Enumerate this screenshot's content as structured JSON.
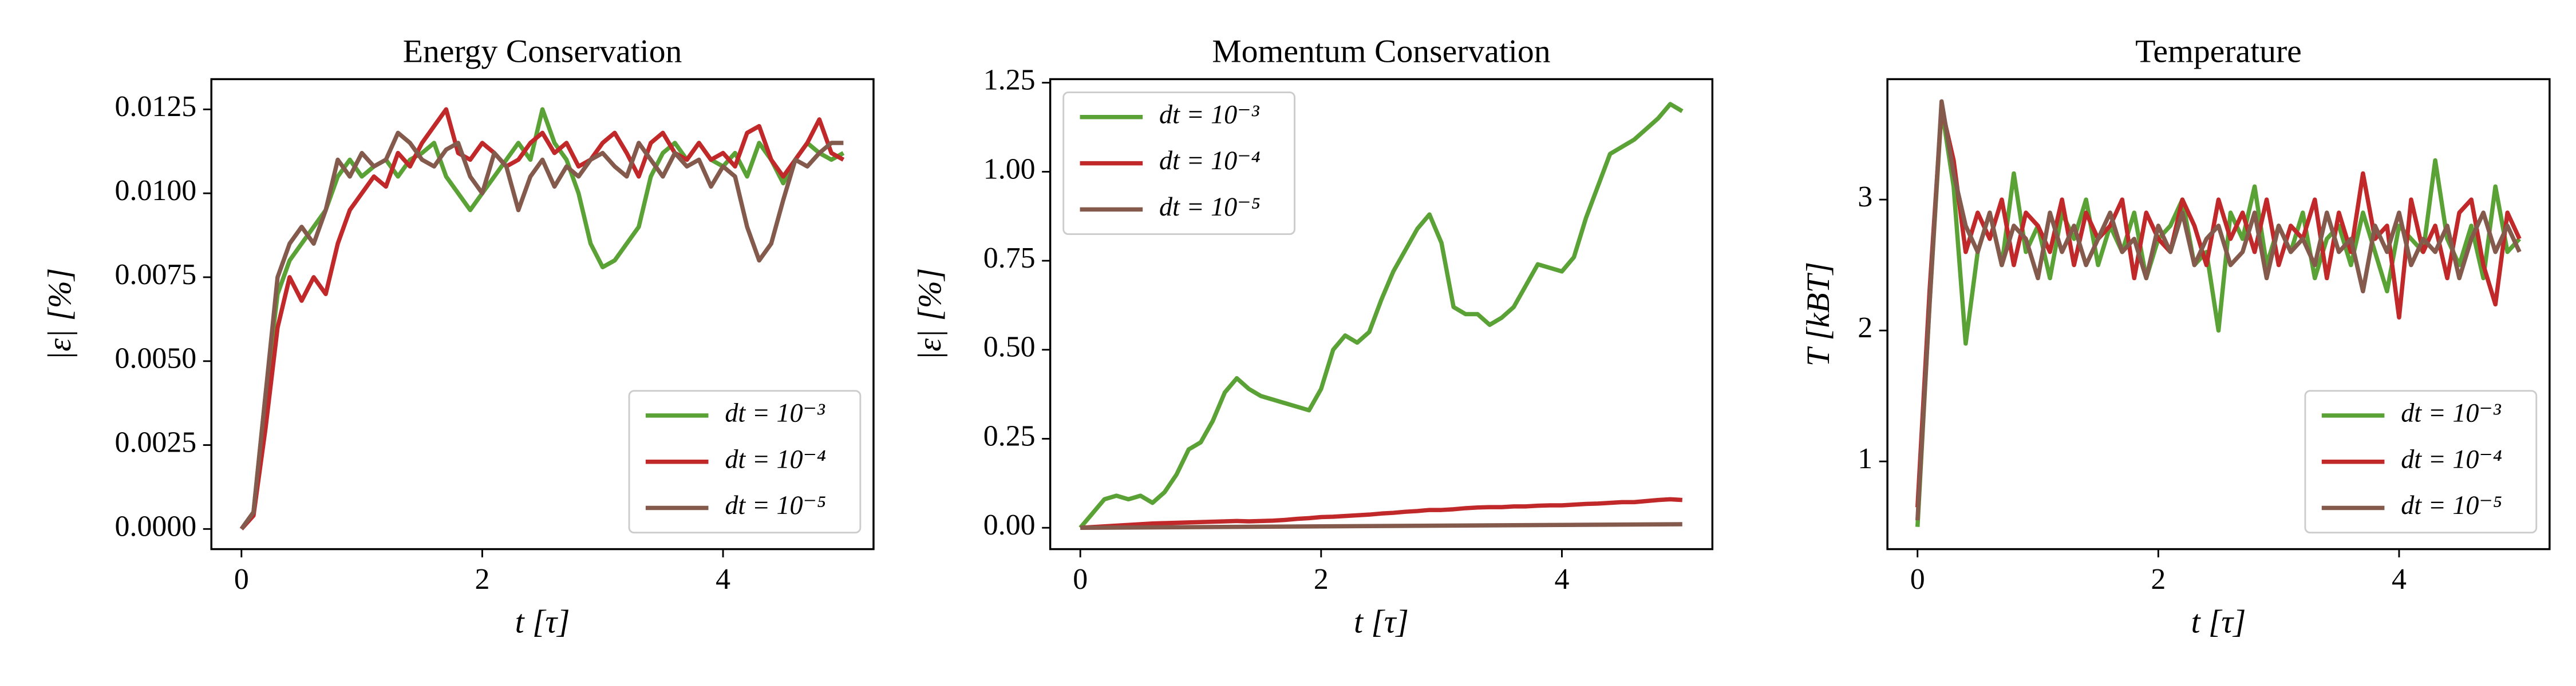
{
  "chart_data": [
    {
      "type": "line",
      "title": "Energy Conservation",
      "xlabel": "t [τ]",
      "ylabel": "|ε| [%]",
      "x": [
        0,
        0.1,
        0.2,
        0.3,
        0.4,
        0.5,
        0.6,
        0.7,
        0.8,
        0.9,
        1.0,
        1.1,
        1.2,
        1.3,
        1.4,
        1.5,
        1.6,
        1.7,
        1.8,
        1.9,
        2.0,
        2.1,
        2.2,
        2.3,
        2.4,
        2.5,
        2.6,
        2.7,
        2.8,
        2.9,
        3.0,
        3.1,
        3.2,
        3.3,
        3.4,
        3.5,
        3.6,
        3.7,
        3.8,
        3.9,
        4.0,
        4.1,
        4.2,
        4.3,
        4.4,
        4.5,
        4.6,
        4.7,
        4.8,
        4.9,
        5.0
      ],
      "series": [
        {
          "name": "dt = 10⁻³",
          "color": "#5ba236",
          "values": [
            0,
            0.0005,
            0.004,
            0.007,
            0.008,
            0.0085,
            0.009,
            0.0095,
            0.0105,
            0.011,
            0.0105,
            0.0108,
            0.011,
            0.0105,
            0.011,
            0.0112,
            0.0115,
            0.0105,
            0.01,
            0.0095,
            0.01,
            0.0105,
            0.011,
            0.0115,
            0.011,
            0.0125,
            0.0115,
            0.011,
            0.01,
            0.0085,
            0.0078,
            0.008,
            0.0085,
            0.009,
            0.0105,
            0.0112,
            0.0115,
            0.011,
            0.0115,
            0.011,
            0.0108,
            0.0112,
            0.0105,
            0.0115,
            0.011,
            0.0103,
            0.011,
            0.0115,
            0.0112,
            0.011,
            0.0112
          ]
        },
        {
          "name": "dt = 10⁻⁴",
          "color": "#c0282a",
          "values": [
            0,
            0.0004,
            0.003,
            0.006,
            0.0075,
            0.0068,
            0.0075,
            0.007,
            0.0085,
            0.0095,
            0.01,
            0.0105,
            0.0102,
            0.0112,
            0.0108,
            0.0115,
            0.012,
            0.0125,
            0.0112,
            0.011,
            0.0115,
            0.0112,
            0.0108,
            0.011,
            0.0115,
            0.0118,
            0.0112,
            0.0115,
            0.0108,
            0.011,
            0.0115,
            0.0118,
            0.0112,
            0.0105,
            0.0115,
            0.0118,
            0.0112,
            0.011,
            0.0115,
            0.011,
            0.0112,
            0.0108,
            0.0118,
            0.012,
            0.011,
            0.0105,
            0.011,
            0.0115,
            0.0122,
            0.0112,
            0.011
          ]
        },
        {
          "name": "dt = 10⁻⁵",
          "color": "#845a4d",
          "values": [
            0,
            0.0005,
            0.004,
            0.0075,
            0.0085,
            0.009,
            0.0085,
            0.0095,
            0.011,
            0.0105,
            0.0112,
            0.0108,
            0.011,
            0.0118,
            0.0115,
            0.011,
            0.0108,
            0.0113,
            0.0115,
            0.0105,
            0.01,
            0.0112,
            0.0108,
            0.0095,
            0.0105,
            0.011,
            0.0102,
            0.0108,
            0.0105,
            0.011,
            0.0112,
            0.0108,
            0.0105,
            0.0115,
            0.011,
            0.0105,
            0.0112,
            0.0108,
            0.011,
            0.0102,
            0.0108,
            0.0105,
            0.009,
            0.008,
            0.0085,
            0.0098,
            0.011,
            0.0108,
            0.0112,
            0.0115,
            0.0115
          ]
        }
      ],
      "xlim": [
        -0.25,
        5.25
      ],
      "xticks": [
        0,
        2,
        4
      ],
      "ylim": [
        -0.0006,
        0.0134
      ],
      "yticks": [
        {
          "value": 0,
          "label": "0.0000"
        },
        0.0025,
        {
          "value": 0.005,
          "label": "0.0050"
        },
        0.0075,
        {
          "value": 0.01,
          "label": "0.0100"
        },
        0.0125
      ],
      "legend": "lower right"
    },
    {
      "type": "line",
      "title": "Momentum Conservation",
      "xlabel": "t [τ]",
      "ylabel": "|ε| [%]",
      "x": [
        0,
        0.1,
        0.2,
        0.3,
        0.4,
        0.5,
        0.6,
        0.7,
        0.8,
        0.9,
        1.0,
        1.1,
        1.2,
        1.3,
        1.4,
        1.5,
        1.6,
        1.7,
        1.8,
        1.9,
        2.0,
        2.1,
        2.2,
        2.3,
        2.4,
        2.5,
        2.6,
        2.7,
        2.8,
        2.9,
        3.0,
        3.1,
        3.2,
        3.3,
        3.4,
        3.5,
        3.6,
        3.7,
        3.8,
        3.9,
        4.0,
        4.1,
        4.2,
        4.3,
        4.4,
        4.5,
        4.6,
        4.7,
        4.8,
        4.9,
        5.0
      ],
      "series": [
        {
          "name": "dt = 10⁻³",
          "color": "#5ba236",
          "values": [
            0,
            0.04,
            0.08,
            0.09,
            0.08,
            0.09,
            0.07,
            0.1,
            0.15,
            0.22,
            0.24,
            0.3,
            0.38,
            0.42,
            0.39,
            0.37,
            0.36,
            0.35,
            0.34,
            0.33,
            0.39,
            0.5,
            0.54,
            0.52,
            0.55,
            0.64,
            0.72,
            0.78,
            0.84,
            0.88,
            0.8,
            0.62,
            0.6,
            0.6,
            0.57,
            0.59,
            0.62,
            0.68,
            0.74,
            0.73,
            0.72,
            0.76,
            0.87,
            0.96,
            1.05,
            1.07,
            1.09,
            1.12,
            1.15,
            1.19,
            1.17
          ]
        },
        {
          "name": "dt = 10⁻⁴",
          "color": "#c0282a",
          "values": [
            0,
            0.002,
            0.004,
            0.006,
            0.008,
            0.01,
            0.012,
            0.013,
            0.014,
            0.015,
            0.016,
            0.017,
            0.018,
            0.019,
            0.018,
            0.019,
            0.02,
            0.022,
            0.025,
            0.027,
            0.03,
            0.031,
            0.033,
            0.035,
            0.037,
            0.04,
            0.042,
            0.045,
            0.047,
            0.05,
            0.05,
            0.052,
            0.055,
            0.057,
            0.058,
            0.058,
            0.06,
            0.06,
            0.062,
            0.063,
            0.063,
            0.065,
            0.067,
            0.068,
            0.07,
            0.072,
            0.072,
            0.075,
            0.078,
            0.08,
            0.078
          ]
        },
        {
          "name": "dt = 10⁻⁵",
          "color": "#845a4d",
          "values": [
            0,
            0.0002,
            0.0004,
            0.0006,
            0.0008,
            0.001,
            0.0012,
            0.0014,
            0.0016,
            0.0018,
            0.002,
            0.0022,
            0.0024,
            0.0026,
            0.0028,
            0.003,
            0.0032,
            0.0034,
            0.0036,
            0.0038,
            0.004,
            0.0042,
            0.0044,
            0.0046,
            0.0048,
            0.005,
            0.0052,
            0.0054,
            0.0056,
            0.0058,
            0.006,
            0.0062,
            0.0064,
            0.0066,
            0.0068,
            0.007,
            0.0072,
            0.0074,
            0.0076,
            0.0078,
            0.008,
            0.0082,
            0.0084,
            0.0086,
            0.0088,
            0.009,
            0.0092,
            0.0094,
            0.0096,
            0.0098,
            0.01
          ]
        }
      ],
      "xlim": [
        -0.25,
        5.25
      ],
      "xticks": [
        0,
        2,
        4
      ],
      "ylim": [
        -0.06,
        1.26
      ],
      "yticks": [
        {
          "value": 0,
          "label": "0.00"
        },
        0.25,
        {
          "value": 0.5,
          "label": "0.50"
        },
        0.75,
        {
          "value": 1,
          "label": "1.00"
        },
        1.25
      ],
      "legend": "upper left"
    },
    {
      "type": "line",
      "title": "Temperature",
      "xlabel": "t [τ]",
      "ylabel": "T [kBT]",
      "x": [
        0,
        0.1,
        0.2,
        0.3,
        0.4,
        0.5,
        0.6,
        0.7,
        0.8,
        0.9,
        1.0,
        1.1,
        1.2,
        1.3,
        1.4,
        1.5,
        1.6,
        1.7,
        1.8,
        1.9,
        2.0,
        2.1,
        2.2,
        2.3,
        2.4,
        2.5,
        2.6,
        2.7,
        2.8,
        2.9,
        3.0,
        3.1,
        3.2,
        3.3,
        3.4,
        3.5,
        3.6,
        3.7,
        3.8,
        3.9,
        4.0,
        4.1,
        4.2,
        4.3,
        4.4,
        4.5,
        4.6,
        4.7,
        4.8,
        4.9,
        5.0
      ],
      "series": [
        {
          "name": "dt = 10⁻³",
          "color": "#5ba236",
          "values": [
            0.5,
            2.2,
            3.7,
            3.1,
            1.9,
            2.6,
            2.9,
            2.5,
            3.2,
            2.6,
            2.8,
            2.4,
            2.9,
            2.7,
            3.0,
            2.5,
            2.8,
            2.6,
            2.9,
            2.4,
            2.7,
            2.8,
            3.0,
            2.5,
            2.6,
            2.0,
            2.9,
            2.7,
            3.1,
            2.5,
            2.8,
            2.6,
            2.9,
            2.4,
            2.7,
            2.8,
            2.5,
            2.9,
            2.6,
            2.3,
            2.8,
            2.7,
            2.6,
            3.3,
            2.7,
            2.5,
            2.8,
            2.4,
            3.1,
            2.6,
            2.7
          ]
        },
        {
          "name": "dt = 10⁻⁴",
          "color": "#c0282a",
          "values": [
            0.65,
            2.3,
            3.7,
            3.3,
            2.6,
            2.9,
            2.7,
            3.0,
            2.5,
            2.9,
            2.8,
            2.6,
            3.0,
            2.5,
            2.9,
            2.7,
            2.8,
            3.0,
            2.4,
            2.9,
            2.7,
            2.6,
            3.0,
            2.8,
            2.5,
            3.0,
            2.7,
            2.9,
            2.6,
            3.0,
            2.5,
            2.8,
            2.7,
            3.0,
            2.4,
            2.9,
            2.6,
            3.2,
            2.7,
            2.8,
            2.1,
            3.0,
            2.6,
            2.8,
            2.4,
            2.9,
            3.0,
            2.5,
            2.2,
            2.9,
            2.7
          ]
        },
        {
          "name": "dt = 10⁻⁵",
          "color": "#845a4d",
          "values": [
            0.55,
            2.2,
            3.75,
            3.2,
            2.8,
            2.6,
            2.9,
            2.5,
            2.8,
            2.7,
            2.4,
            2.9,
            2.6,
            2.8,
            2.5,
            2.7,
            2.9,
            2.6,
            2.7,
            2.4,
            2.8,
            2.6,
            2.9,
            2.5,
            2.7,
            2.8,
            2.5,
            2.6,
            2.9,
            2.4,
            2.8,
            2.6,
            2.7,
            2.5,
            2.9,
            2.6,
            2.7,
            2.3,
            2.8,
            2.6,
            2.9,
            2.5,
            2.7,
            2.6,
            2.8,
            2.4,
            2.7,
            2.9,
            2.6,
            2.8,
            2.6
          ]
        }
      ],
      "xlim": [
        -0.25,
        5.25
      ],
      "xticks": [
        0,
        2,
        4
      ],
      "ylim": [
        0.33,
        3.92
      ],
      "yticks": [
        1,
        2,
        3
      ],
      "legend": "lower right"
    }
  ]
}
